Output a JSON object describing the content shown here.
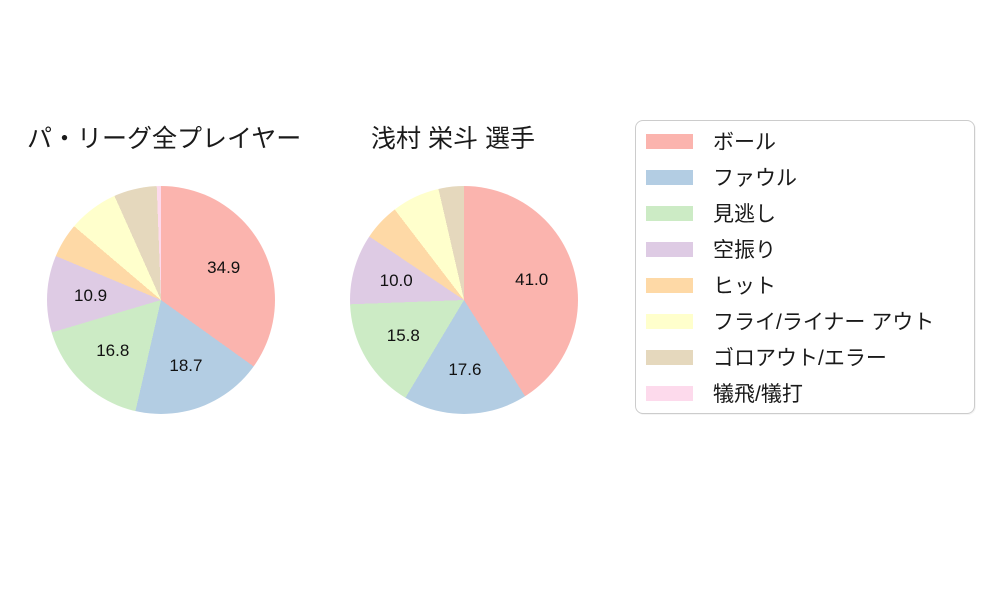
{
  "figure": {
    "background": "#ffffff",
    "text_color": "#1a1a1a"
  },
  "legend": {
    "entries": [
      {
        "label": "ボール",
        "color": "#fbb4ae"
      },
      {
        "label": "ファウル",
        "color": "#b3cde3"
      },
      {
        "label": "見逃し",
        "color": "#ccebc5"
      },
      {
        "label": "空振り",
        "color": "#decbe4"
      },
      {
        "label": "ヒット",
        "color": "#fed9a6"
      },
      {
        "label": "フライ/ライナー アウト",
        "color": "#ffffcc"
      },
      {
        "label": "ゴロアウト/エラー",
        "color": "#e5d8bd"
      },
      {
        "label": "犠飛/犠打",
        "color": "#fddaec"
      }
    ]
  },
  "chart_data": [
    {
      "type": "pie",
      "title": "パ・リーグ全プレイヤー",
      "start_angle": "top, clockwise",
      "slices": [
        {
          "name": "ボール",
          "value": 34.9,
          "display_label": "34.9"
        },
        {
          "name": "ファウル",
          "value": 18.7,
          "display_label": "18.7"
        },
        {
          "name": "見逃し",
          "value": 16.8,
          "display_label": "16.8"
        },
        {
          "name": "空振り",
          "value": 10.9,
          "display_label": "10.9"
        },
        {
          "name": "ヒット",
          "value": 4.9,
          "display_label": null
        },
        {
          "name": "フライ/ライナー アウト",
          "value": 7.1,
          "display_label": null
        },
        {
          "name": "ゴロアウト/エラー",
          "value": 6.1,
          "display_label": null
        },
        {
          "name": "犠飛/犠打",
          "value": 0.6,
          "display_label": null
        }
      ]
    },
    {
      "type": "pie",
      "title": "浅村 栄斗 選手",
      "start_angle": "top, clockwise",
      "slices": [
        {
          "name": "ボール",
          "value": 41.0,
          "display_label": "41.0"
        },
        {
          "name": "ファウル",
          "value": 17.6,
          "display_label": "17.6"
        },
        {
          "name": "見逃し",
          "value": 15.8,
          "display_label": "15.8"
        },
        {
          "name": "空振り",
          "value": 10.0,
          "display_label": "10.0"
        },
        {
          "name": "ヒット",
          "value": 5.2,
          "display_label": null
        },
        {
          "name": "フライ/ライナー アウト",
          "value": 6.8,
          "display_label": null
        },
        {
          "name": "ゴロアウト/エラー",
          "value": 3.6,
          "display_label": null
        },
        {
          "name": "犠飛/犠打",
          "value": 0.0,
          "display_label": null
        }
      ]
    }
  ]
}
